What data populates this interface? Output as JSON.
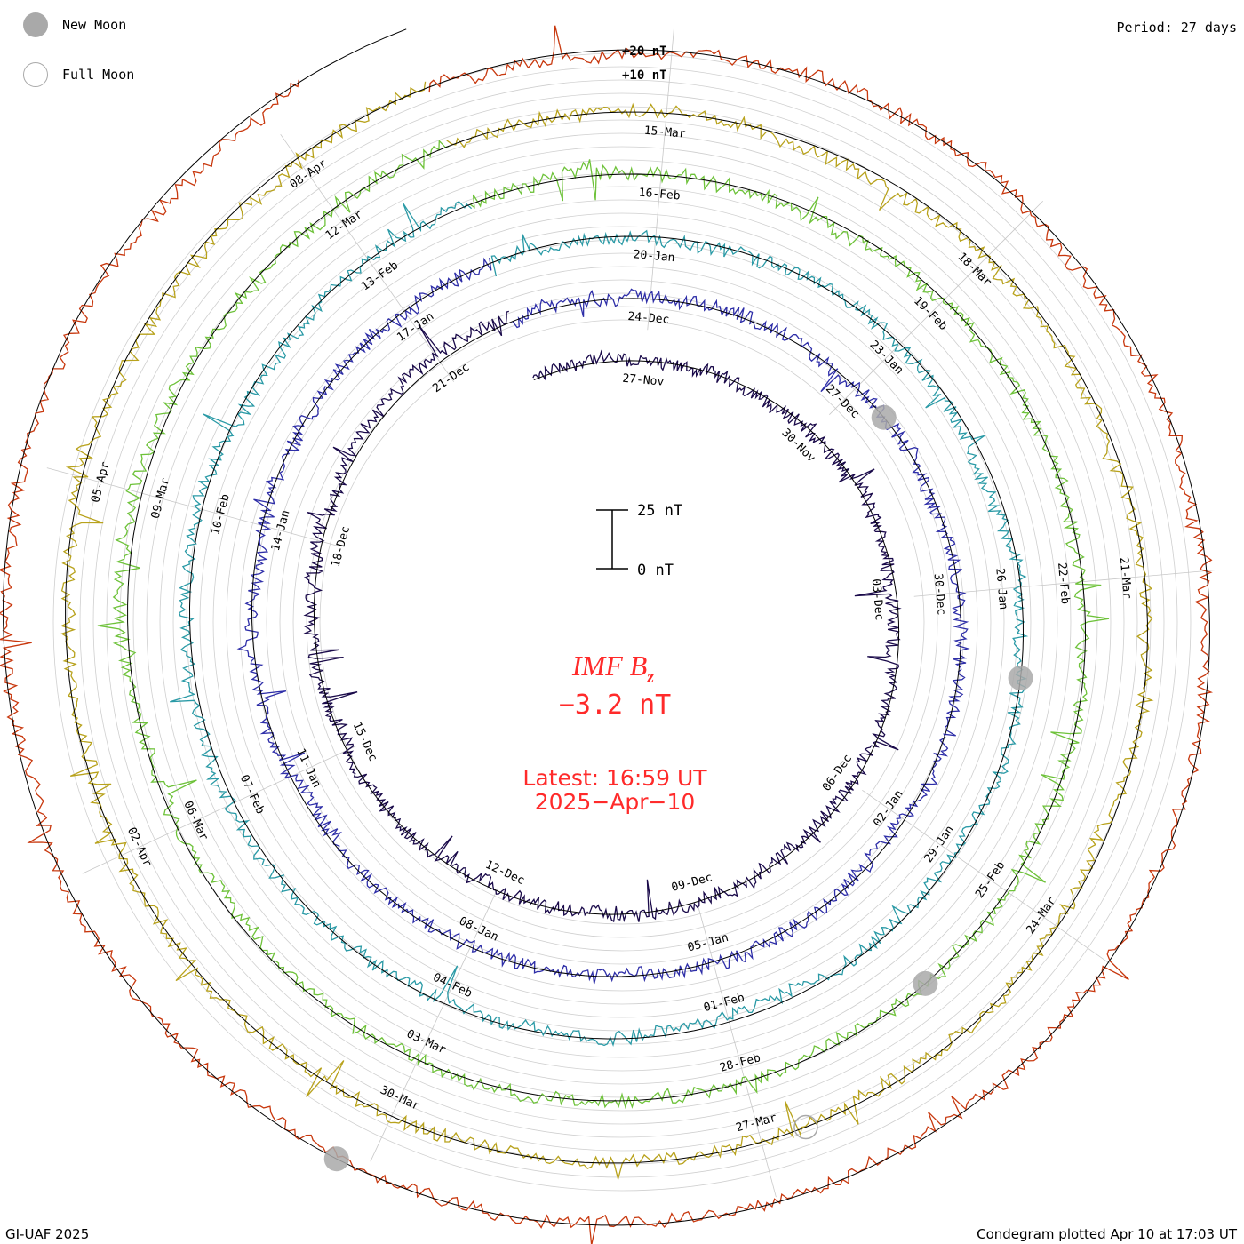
{
  "legend": {
    "new_moon_label": "New Moon",
    "full_moon_label": "Full Moon",
    "new_moon_color": "#a9a9a9",
    "full_moon_outline_color": "#a9a9a9"
  },
  "header": {
    "period": "Period: 27 days"
  },
  "footer": {
    "credit": "GI-UAF 2025",
    "plotted": "Condegram plotted Apr 10 at 17:03 UT"
  },
  "center": {
    "quantity": "IMF B",
    "quantity_subscript": "z",
    "value": "−3.2 nT",
    "latest": "Latest: 16:59 UT",
    "date": "2025−Apr−10",
    "text_color": "#ff2a2a"
  },
  "chart_data": {
    "type": "line",
    "layout": "spiral condegram (27-day rotations)",
    "scale_bar": {
      "top_label": "25 nT",
      "bottom_label": "0 nT"
    },
    "scale_labels": [
      "+20 nT",
      "+10 nT"
    ],
    "rotations": [
      {
        "color": "#1a0a4a",
        "date_labels": [
          "27-Nov",
          "30-Nov",
          "03-Dec",
          "06-Dec",
          "09-Dec",
          "12-Dec",
          "15-Dec",
          "18-Dec",
          "21-Dec"
        ]
      },
      {
        "color": "#2e2ea8",
        "date_labels": [
          "24-Dec",
          "27-Dec",
          "30-Dec",
          "02-Jan",
          "05-Jan",
          "08-Jan",
          "11-Jan",
          "14-Jan",
          "17-Jan"
        ]
      },
      {
        "color": "#2a9aa6",
        "date_labels": [
          "20-Jan",
          "23-Jan",
          "26-Jan",
          "29-Jan",
          "01-Feb",
          "04-Feb",
          "07-Feb",
          "10-Feb",
          "13-Feb"
        ]
      },
      {
        "color": "#6ec23a",
        "date_labels": [
          "16-Feb",
          "19-Feb",
          "22-Feb",
          "25-Feb",
          "28-Feb",
          "03-Mar",
          "06-Mar",
          "09-Mar",
          "12-Mar"
        ]
      },
      {
        "color": "#b8a21c",
        "date_labels": [
          "15-Mar",
          "18-Mar",
          "21-Mar",
          "24-Mar",
          "27-Mar",
          "30-Mar",
          "02-Apr",
          "05-Apr",
          "08-Apr"
        ]
      },
      {
        "color": "#c8380e",
        "date_labels": []
      }
    ],
    "moon_markers": [
      {
        "phase": "new",
        "angle_deg": 52,
        "ring": 1
      },
      {
        "phase": "new",
        "angle_deg": 98,
        "ring": 2
      },
      {
        "phase": "new",
        "angle_deg": 140,
        "ring": 3
      },
      {
        "phase": "new",
        "angle_deg": 208,
        "ring": 5
      },
      {
        "phase": "full",
        "angle_deg": 160,
        "ring": 4
      }
    ]
  }
}
